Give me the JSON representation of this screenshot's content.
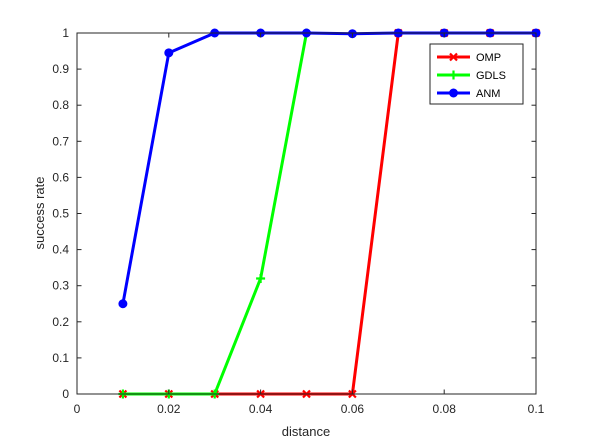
{
  "chart_data": {
    "type": "line",
    "title": "",
    "xlabel": "distance",
    "ylabel": "success rate",
    "xlim": [
      0,
      0.1
    ],
    "ylim": [
      0,
      1
    ],
    "xticks": [
      "0",
      "0.02",
      "0.04",
      "0.06",
      "0.08",
      "0.1"
    ],
    "yticks": [
      "0",
      "0.1",
      "0.2",
      "0.3",
      "0.4",
      "0.5",
      "0.6",
      "0.7",
      "0.8",
      "0.9",
      "1"
    ],
    "grid": false,
    "legend_position": "top-right",
    "series": [
      {
        "name": "OMP",
        "color": "#ff0000",
        "marker": "x",
        "x": [
          0.01,
          0.02,
          0.03,
          0.04,
          0.05,
          0.06,
          0.07,
          0.08,
          0.09,
          0.1
        ],
        "y": [
          0,
          0,
          0,
          0,
          0,
          0,
          1,
          1,
          1,
          1
        ]
      },
      {
        "name": "GDLS",
        "color": "#00ff00",
        "marker": "+",
        "x": [
          0.01,
          0.02,
          0.03,
          0.04,
          0.05
        ],
        "y": [
          0,
          0,
          0,
          0.32,
          1
        ]
      },
      {
        "name": "ANM",
        "color": "#0000ff",
        "marker": "o",
        "x": [
          0.01,
          0.02,
          0.03,
          0.04,
          0.05,
          0.06,
          0.07,
          0.08,
          0.09,
          0.1
        ],
        "y": [
          0.25,
          0.945,
          1,
          1,
          1,
          0.998,
          1,
          1,
          1,
          1
        ]
      }
    ]
  }
}
